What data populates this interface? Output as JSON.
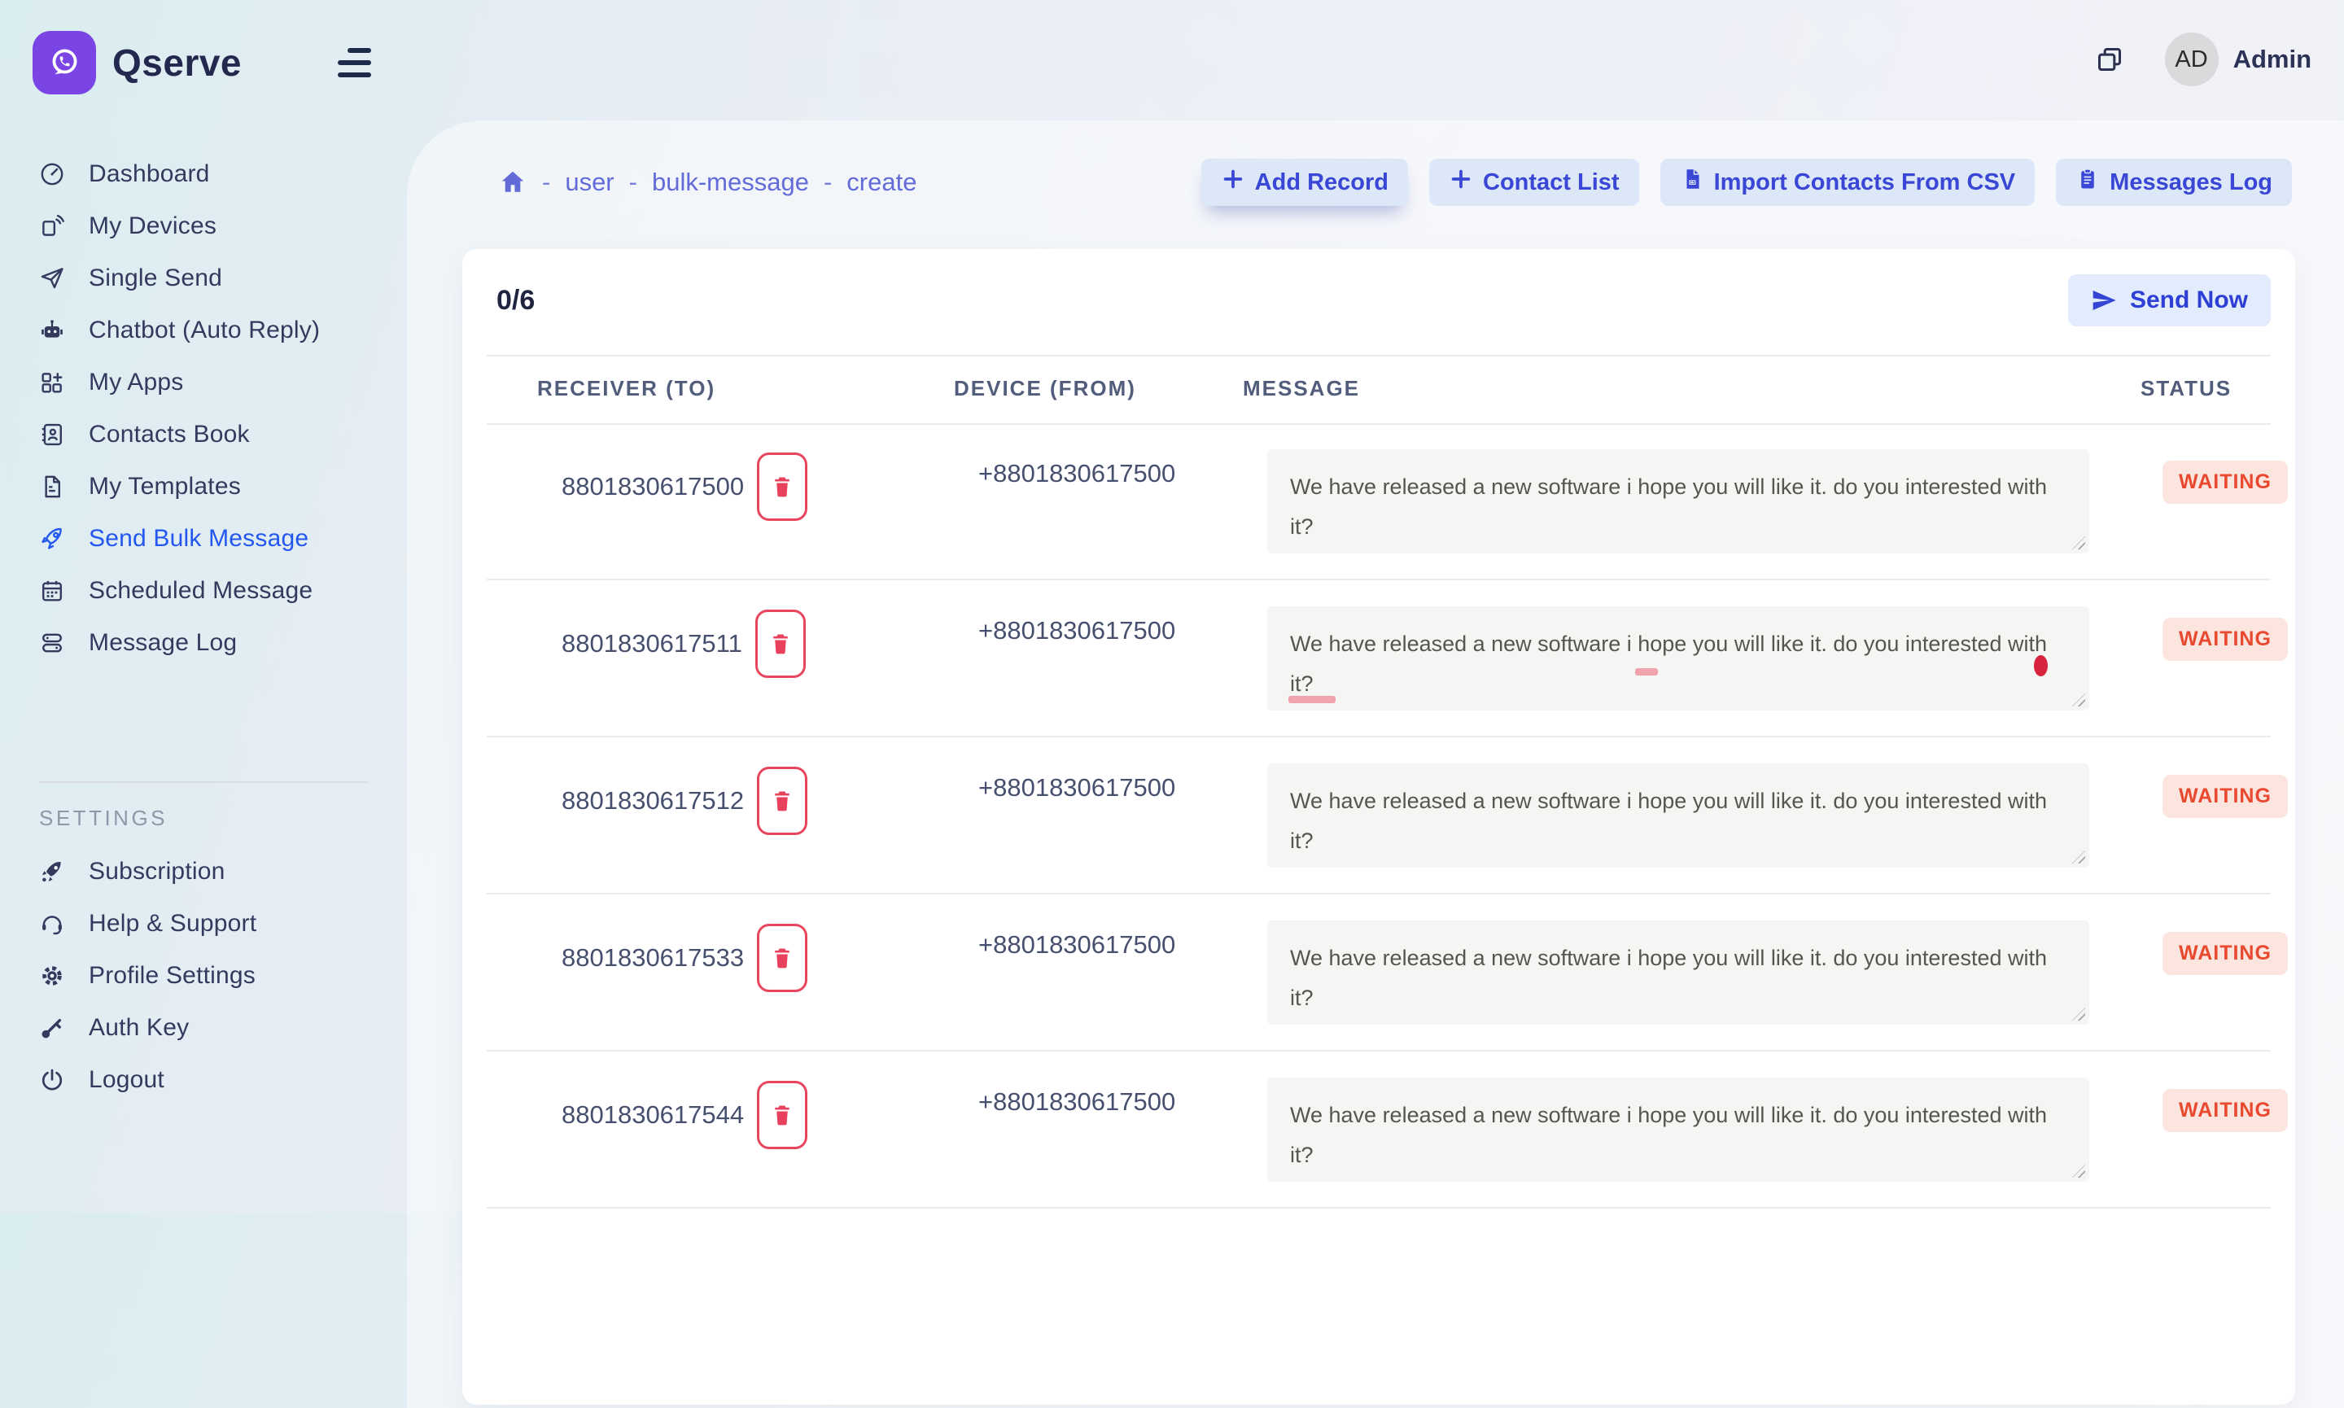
{
  "brand": {
    "name": "Qserve",
    "logo_icon": "whatsapp-icon"
  },
  "topbar": {
    "user_initials": "AD",
    "user_name": "Admin"
  },
  "sidebar": {
    "items": [
      {
        "icon": "dashboard-icon",
        "label": "Dashboard"
      },
      {
        "icon": "devices-icon",
        "label": "My Devices"
      },
      {
        "icon": "paper-plane-icon",
        "label": "Single Send"
      },
      {
        "icon": "chatbot-icon",
        "label": "Chatbot (Auto Reply)"
      },
      {
        "icon": "apps-icon",
        "label": "My Apps"
      },
      {
        "icon": "contacts-icon",
        "label": "Contacts Book"
      },
      {
        "icon": "templates-icon",
        "label": "My Templates"
      },
      {
        "icon": "rocket-icon",
        "label": "Send Bulk Message",
        "active": true
      },
      {
        "icon": "calendar-icon",
        "label": "Scheduled Message"
      },
      {
        "icon": "message-log-icon",
        "label": "Message Log"
      }
    ],
    "settings_label": "SETTINGS",
    "settings_items": [
      {
        "icon": "rocket-filled-icon",
        "label": "Subscription"
      },
      {
        "icon": "support-icon",
        "label": "Help & Support"
      },
      {
        "icon": "gear-icon",
        "label": "Profile Settings"
      },
      {
        "icon": "key-icon",
        "label": "Auth Key"
      },
      {
        "icon": "power-icon",
        "label": "Logout"
      }
    ]
  },
  "breadcrumb": {
    "separator": "-",
    "items": [
      "user",
      "bulk-message",
      "create"
    ]
  },
  "actions": [
    {
      "icon": "plus-icon",
      "label": "Add Record",
      "emphasized": true
    },
    {
      "icon": "plus-icon",
      "label": "Contact List"
    },
    {
      "icon": "csv-file-icon",
      "label": "Import Contacts From CSV"
    },
    {
      "icon": "clipboard-icon",
      "label": "Messages Log"
    }
  ],
  "bulk_panel": {
    "counter": "0/6",
    "send_now_label": "Send Now"
  },
  "table": {
    "headers": [
      "RECEIVER (TO)",
      "DEVICE (FROM)",
      "MESSAGE",
      "STATUS"
    ],
    "rows": [
      {
        "receiver": "8801830617500",
        "device": "+8801830617500",
        "message": "We have released a new software i hope you will like it. do you interested with it?",
        "status": "WAITING",
        "spellcheck_marks": false
      },
      {
        "receiver": "8801830617511",
        "device": "+8801830617500",
        "message": "We have released a new software i hope you will like it. do you interested with it?",
        "status": "WAITING",
        "spellcheck_marks": true
      },
      {
        "receiver": "8801830617512",
        "device": "+8801830617500",
        "message": "We have released a new software i hope you will like it. do you interested with it?",
        "status": "WAITING",
        "spellcheck_marks": false
      },
      {
        "receiver": "8801830617533",
        "device": "+8801830617500",
        "message": "We have released a new software i hope you will like it. do you interested with it?",
        "status": "WAITING",
        "spellcheck_marks": false
      },
      {
        "receiver": "8801830617544",
        "device": "+8801830617500",
        "message": "We have released a new software i hope you will like it. do you interested with it?",
        "status": "WAITING",
        "spellcheck_marks": false
      }
    ]
  },
  "colors": {
    "brand-purple": "#7b45e6",
    "brand-navy": "#23284f",
    "nav-text": "#333a5e",
    "accent-blue": "#2457f0",
    "link-indigo": "#636bd9",
    "btn-bg": "#dce7f7",
    "btn-bg-light": "#e3ecfc",
    "btn-text": "#3a47d6",
    "danger": "#e8465f",
    "status-text": "#e8492f",
    "status-bg": "#fbe5de",
    "number-text": "#46506e",
    "textarea-bg": "#f5f5f3",
    "message-text": "#56554f",
    "divider": "#e9ebf1",
    "settings-label": "#8d99aa"
  }
}
